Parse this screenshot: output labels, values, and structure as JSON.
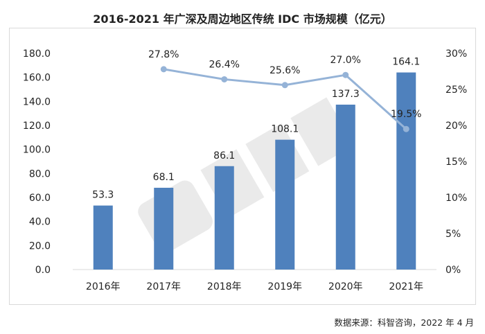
{
  "title": "2016-2021 年广深及周边地区传统 IDC 市场规模（亿元）",
  "source": "数据来源：科智咨询，2022 年 4 月",
  "colors": {
    "bar": "#4f81bd",
    "line": "#95b3d7"
  },
  "chart_data": {
    "type": "bar+line",
    "categories": [
      "2016年",
      "2017年",
      "2018年",
      "2019年",
      "2020年",
      "2021年"
    ],
    "series": [
      {
        "type": "bar",
        "axis": "left",
        "values": [
          53.3,
          68.1,
          86.1,
          108.1,
          137.3,
          164.1
        ],
        "labels": [
          "53.3",
          "68.1",
          "86.1",
          "108.1",
          "137.3",
          "164.1"
        ]
      },
      {
        "type": "line",
        "axis": "right",
        "values": [
          null,
          27.8,
          26.4,
          25.6,
          27.0,
          19.5
        ],
        "labels": [
          "",
          "27.8%",
          "26.4%",
          "25.6%",
          "27.0%",
          "19.5%"
        ]
      }
    ],
    "y_left": {
      "min": 0,
      "max": 180,
      "ticks": [
        "0.0",
        "20.0",
        "40.0",
        "60.0",
        "80.0",
        "100.0",
        "120.0",
        "140.0",
        "160.0",
        "180.0"
      ]
    },
    "y_right": {
      "min": 0,
      "max": 30,
      "ticks": [
        "0%",
        "5%",
        "10%",
        "15%",
        "20%",
        "25%",
        "30%"
      ]
    },
    "grid": false,
    "legend": "none"
  }
}
